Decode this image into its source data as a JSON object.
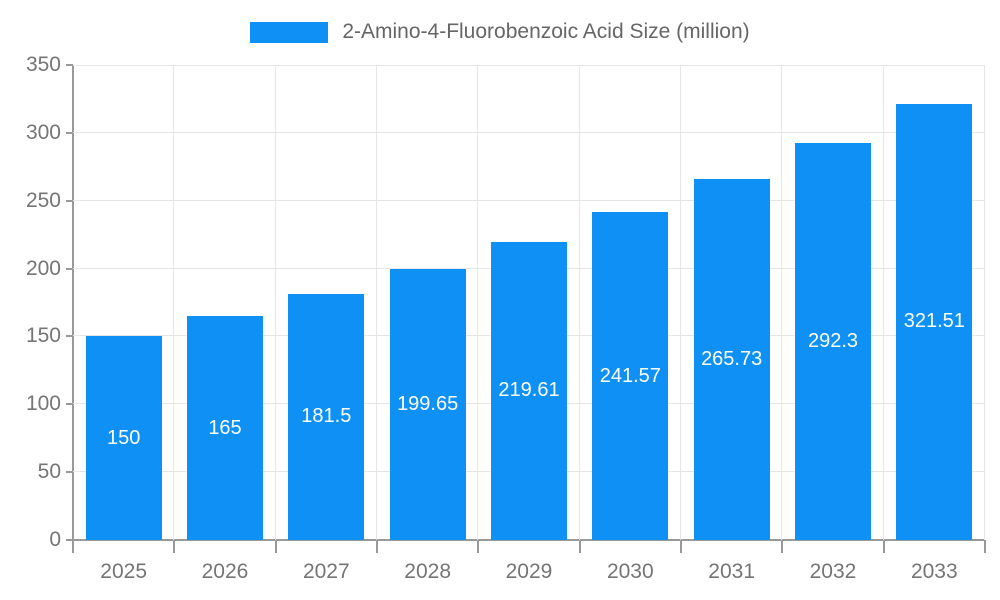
{
  "chart_data": {
    "type": "bar",
    "series_name": "2-Amino-4-Fluorobenzoic Acid Size (million)",
    "categories": [
      "2025",
      "2026",
      "2027",
      "2028",
      "2029",
      "2030",
      "2031",
      "2032",
      "2033"
    ],
    "values": [
      150,
      165,
      181.5,
      199.65,
      219.61,
      241.57,
      265.73,
      292.3,
      321.51
    ],
    "title": "",
    "xlabel": "",
    "ylabel": "",
    "ylim": [
      0,
      350
    ],
    "yticks": [
      0,
      50,
      100,
      150,
      200,
      250,
      300,
      350
    ],
    "grid": true,
    "legend_position": "top-center",
    "bar_color": "#0e90f5",
    "value_label_color": "#ffffff",
    "axis_color": "#999999",
    "grid_color": "#e6e6e6",
    "tick_label_color": "#757575",
    "legend_text_color": "#666666"
  }
}
